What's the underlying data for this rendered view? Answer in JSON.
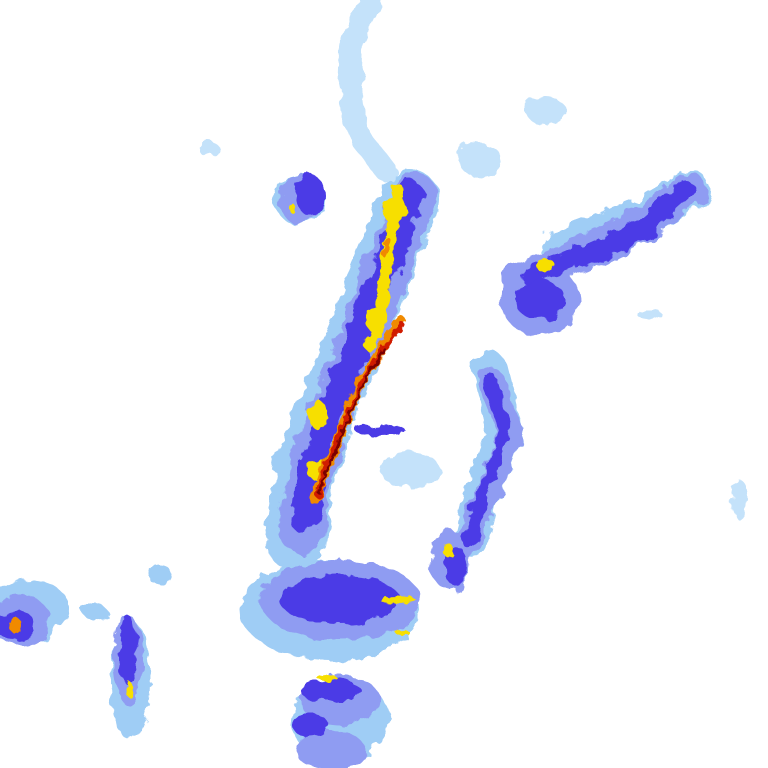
{
  "radar": {
    "background": "#ffffff",
    "intensity_colors": {
      "very_light": "#c4e2fa",
      "light": "#9fcdf5",
      "moderate": "#8f9cf2",
      "heavy": "#4b3be6",
      "very_heavy": "#f7df00",
      "intense": "#f08a00",
      "extreme": "#d01a00",
      "severe": "#7a0000"
    }
  }
}
